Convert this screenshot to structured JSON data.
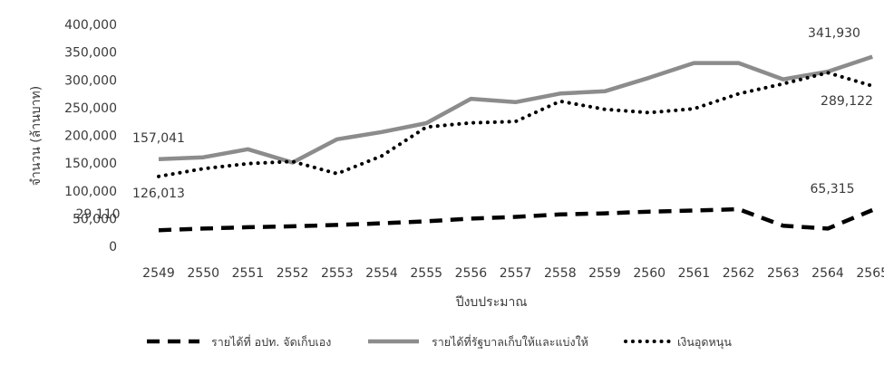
{
  "chart_data": {
    "type": "line",
    "x": [
      "2549",
      "2550",
      "2551",
      "2552",
      "2553",
      "2554",
      "2555",
      "2556",
      "2557",
      "2558",
      "2559",
      "2560",
      "2561",
      "2562",
      "2563",
      "2564",
      "2565"
    ],
    "xlabel": "ปีงบประมาณ",
    "ylabel": "จำนวน (ล้านบาท)",
    "ylim": [
      0,
      400000
    ],
    "yticks": [
      "0",
      "50,000",
      "100,000",
      "150,000",
      "200,000",
      "250,000",
      "300,000",
      "350,000",
      "400,000"
    ],
    "grid": false,
    "legend_position": "bottom",
    "series": [
      {
        "name": "รายได้ที่ อปท. จัดเก็บเอง",
        "style": "dashed",
        "color": "#000000",
        "values": [
          29110,
          32000,
          34500,
          36000,
          38500,
          41500,
          45000,
          50000,
          53000,
          57500,
          59500,
          62500,
          64500,
          67000,
          37000,
          32000,
          65315
        ]
      },
      {
        "name": "รายได้ที่รัฐบาลเก็บให้และแบ่งให้",
        "style": "solid",
        "color": "#8c8c8c",
        "values": [
          157041,
          160500,
          175000,
          151000,
          193000,
          206000,
          222000,
          266000,
          260000,
          275500,
          279500,
          304000,
          330500,
          330500,
          301000,
          315000,
          341930
        ]
      },
      {
        "name": "เงินอุดหนุน",
        "style": "dotted",
        "color": "#000000",
        "values": [
          126013,
          140000,
          149000,
          153000,
          131000,
          163000,
          215000,
          222500,
          225000,
          261500,
          247000,
          241000,
          248000,
          275000,
          293000,
          313000,
          289122
        ]
      }
    ],
    "annotations": [
      {
        "text": "157,041"
      },
      {
        "text": "126,013"
      },
      {
        "text": "29,110"
      },
      {
        "text": "341,930"
      },
      {
        "text": "289,122"
      },
      {
        "text": "65,315"
      }
    ]
  }
}
